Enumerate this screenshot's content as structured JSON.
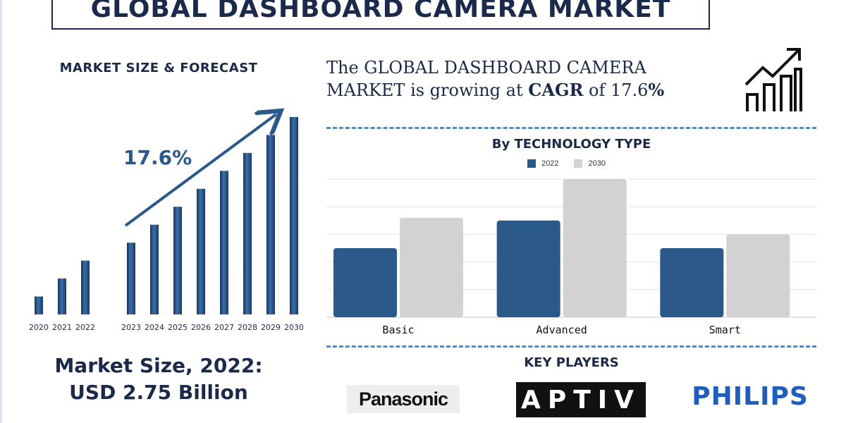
{
  "title": "GLOBAL DASHBOARD CAMERA MARKET",
  "market_size_heading": "MARKET SIZE & FORECAST",
  "market_size_line1": "Market Size, 2022:",
  "market_size_line2": "USD 2.75 Billion",
  "growth_text": {
    "part1": "The GLOBAL DASHBOARD CAMERA MARKET is growing at ",
    "cagr": "CAGR",
    "part2": " of 17.6",
    "pct": "%"
  },
  "tech_heading": "By TECHNOLOGY TYPE",
  "key_players_heading": "KEY PLAYERS",
  "logos": {
    "panasonic": "Panasonic",
    "aptiv": "APTIV",
    "philips": "PHILIPS"
  },
  "colors": {
    "navy": "#1b2a4a",
    "bar_2022": "#2b5a8a",
    "bar_2030": "#d2d2d2",
    "philips": "#1f5ebd"
  },
  "chart_data": [
    {
      "type": "bar",
      "title": "MARKET SIZE & FORECAST",
      "categories": [
        "2020",
        "2021",
        "2022",
        "2023",
        "2024",
        "2025",
        "2026",
        "2027",
        "2028",
        "2029",
        "2030"
      ],
      "values": [
        1,
        2,
        3,
        4,
        5,
        6,
        7,
        8,
        9,
        10,
        11
      ],
      "annotation": "17.6%",
      "grid": false,
      "ylim": [
        0,
        11
      ]
    },
    {
      "type": "bar",
      "title": "By TECHNOLOGY TYPE",
      "categories": [
        "Basic",
        "Advanced",
        "Smart"
      ],
      "series": [
        {
          "name": "2022",
          "values": [
            2.5,
            3.5,
            2.5
          ]
        },
        {
          "name": "2030",
          "values": [
            3.6,
            5.0,
            3.0
          ]
        }
      ],
      "ylim": [
        0,
        5
      ],
      "grid": true,
      "legend": "top"
    }
  ]
}
